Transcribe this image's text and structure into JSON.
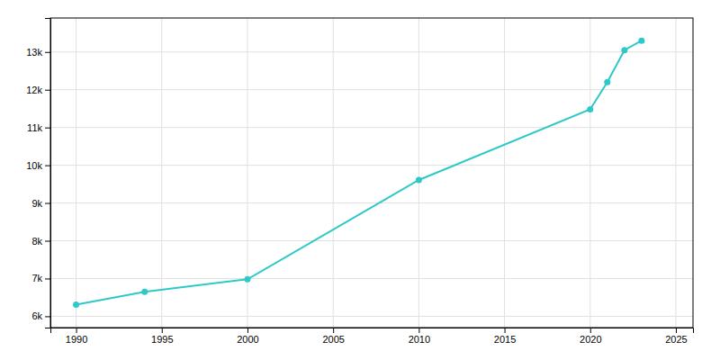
{
  "chart_data": {
    "type": "line",
    "x": [
      1990,
      1994,
      2000,
      2010,
      2020,
      2021,
      2022,
      2023
    ],
    "values": [
      6310,
      6650,
      6980,
      9610,
      11480,
      12200,
      13050,
      13300
    ],
    "color": "#2ec8c8",
    "marker": "circle",
    "xlim": [
      1988.5,
      2026
    ],
    "ylim": [
      5700,
      13900
    ],
    "xticks": [
      1990,
      1995,
      2000,
      2005,
      2010,
      2015,
      2020,
      2025
    ],
    "yticks": [
      {
        "value": 6000,
        "label": "6k"
      },
      {
        "value": 7000,
        "label": "7k"
      },
      {
        "value": 8000,
        "label": "8k"
      },
      {
        "value": 9000,
        "label": "9k"
      },
      {
        "value": 10000,
        "label": "10k"
      },
      {
        "value": 11000,
        "label": "11k"
      },
      {
        "value": 12000,
        "label": "12k"
      },
      {
        "value": 13000,
        "label": "13k"
      }
    ],
    "grid": true
  }
}
